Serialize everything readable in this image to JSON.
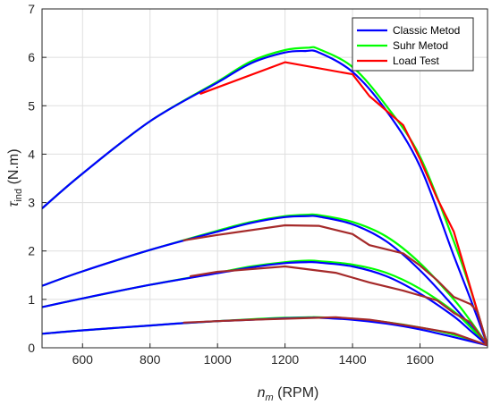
{
  "chart_data": {
    "type": "line",
    "title": "",
    "xlim": [
      480,
      1800
    ],
    "ylim": [
      0,
      7
    ],
    "xticks": [
      600,
      800,
      1000,
      1200,
      1400,
      1600
    ],
    "yticks": [
      0,
      1,
      2,
      3,
      4,
      5,
      6,
      7
    ],
    "xticklabels": [
      "600",
      "800",
      "1000",
      "1200",
      "1400",
      "1600"
    ],
    "yticklabels": [
      "0",
      "1",
      "2",
      "3",
      "4",
      "5",
      "6",
      "7"
    ],
    "xlabel": {
      "symbol": "n",
      "sub": "m",
      "unit": " (RPM)"
    },
    "ylabel": {
      "symbol": "τ",
      "sub": "ind",
      "unit": " (N.m)"
    },
    "grid": true,
    "legend_position": "top-right",
    "legend": [
      {
        "label": "Classic Metod",
        "color": "#0000ff"
      },
      {
        "label": "Suhr Metod",
        "color": "#00ff00"
      },
      {
        "label": "Load Test",
        "color": "#ff0000"
      }
    ],
    "series": [
      {
        "name": "Suhr Metod",
        "color": "#00ff00",
        "x": [
          480,
          600,
          800,
          1000,
          1100,
          1200,
          1270,
          1300,
          1400,
          1500,
          1600,
          1700,
          1750,
          1800
        ],
        "y": [
          2.88,
          3.6,
          4.68,
          5.5,
          5.92,
          6.15,
          6.2,
          6.17,
          5.8,
          5.0,
          3.95,
          2.2,
          1.2,
          0.05
        ]
      },
      {
        "name": "Classic Metod",
        "color": "#0000ff",
        "x": [
          480,
          600,
          800,
          1000,
          1100,
          1200,
          1260,
          1300,
          1400,
          1500,
          1600,
          1700,
          1750,
          1800
        ],
        "y": [
          2.88,
          3.6,
          4.68,
          5.48,
          5.88,
          6.1,
          6.13,
          6.1,
          5.7,
          4.9,
          3.75,
          1.9,
          1.0,
          0.05
        ]
      },
      {
        "name": "Load Test",
        "color": "#ff0000",
        "x": [
          950,
          1000,
          1200,
          1400,
          1450,
          1550,
          1600,
          1650,
          1700,
          1800
        ],
        "y": [
          5.25,
          5.38,
          5.9,
          5.65,
          5.2,
          4.6,
          3.9,
          3.1,
          2.4,
          0.05
        ]
      },
      {
        "color": "#00ff00",
        "x": [
          480,
          600,
          800,
          1000,
          1100,
          1200,
          1270,
          1300,
          1400,
          1500,
          1600,
          1700,
          1750,
          1800
        ],
        "y": [
          1.28,
          1.58,
          2.02,
          2.42,
          2.6,
          2.72,
          2.75,
          2.74,
          2.6,
          2.3,
          1.75,
          1.0,
          0.55,
          0.05
        ]
      },
      {
        "color": "#0000ff",
        "x": [
          480,
          600,
          800,
          1000,
          1100,
          1200,
          1270,
          1300,
          1400,
          1500,
          1600,
          1700,
          1750,
          1800
        ],
        "y": [
          1.28,
          1.58,
          2.02,
          2.4,
          2.58,
          2.7,
          2.72,
          2.71,
          2.55,
          2.2,
          1.6,
          0.85,
          0.45,
          0.05
        ]
      },
      {
        "color": "#a52a2a",
        "x": [
          900,
          1000,
          1200,
          1300,
          1400,
          1450,
          1550,
          1600,
          1650,
          1700,
          1750,
          1770,
          1800
        ],
        "y": [
          2.22,
          2.33,
          2.53,
          2.52,
          2.35,
          2.12,
          1.95,
          1.7,
          1.4,
          1.05,
          0.9,
          0.75,
          0.05
        ]
      },
      {
        "color": "#00ff00",
        "x": [
          480,
          600,
          800,
          1000,
          1100,
          1200,
          1270,
          1300,
          1400,
          1500,
          1600,
          1700,
          1750,
          1800
        ],
        "y": [
          0.84,
          1.02,
          1.3,
          1.55,
          1.68,
          1.77,
          1.8,
          1.79,
          1.72,
          1.55,
          1.22,
          0.75,
          0.42,
          0.05
        ]
      },
      {
        "color": "#0000ff",
        "x": [
          480,
          600,
          800,
          1000,
          1100,
          1200,
          1270,
          1300,
          1400,
          1500,
          1600,
          1700,
          1750,
          1800
        ],
        "y": [
          0.84,
          1.02,
          1.3,
          1.54,
          1.66,
          1.75,
          1.77,
          1.76,
          1.68,
          1.48,
          1.12,
          0.65,
          0.35,
          0.05
        ]
      },
      {
        "color": "#a52a2a",
        "x": [
          920,
          1000,
          1200,
          1350,
          1400,
          1450,
          1550,
          1600,
          1650,
          1700,
          1750,
          1800
        ],
        "y": [
          1.48,
          1.57,
          1.68,
          1.55,
          1.45,
          1.35,
          1.18,
          1.08,
          0.98,
          0.72,
          0.52,
          0.05
        ]
      },
      {
        "color": "#00ff00",
        "x": [
          480,
          600,
          800,
          900,
          1000,
          1100,
          1200,
          1270,
          1300,
          1400,
          1500,
          1600,
          1700,
          1800
        ],
        "y": [
          0.29,
          0.36,
          0.46,
          0.51,
          0.55,
          0.59,
          0.62,
          0.63,
          0.63,
          0.6,
          0.53,
          0.42,
          0.27,
          0.05
        ]
      },
      {
        "color": "#0000ff",
        "x": [
          480,
          600,
          800,
          900,
          1000,
          1100,
          1200,
          1270,
          1300,
          1400,
          1500,
          1600,
          1700,
          1800
        ],
        "y": [
          0.29,
          0.36,
          0.46,
          0.51,
          0.55,
          0.58,
          0.61,
          0.62,
          0.62,
          0.58,
          0.5,
          0.38,
          0.22,
          0.05
        ]
      },
      {
        "color": "#a52a2a",
        "x": [
          900,
          1000,
          1100,
          1200,
          1300,
          1350,
          1450,
          1500,
          1600,
          1700,
          1800
        ],
        "y": [
          0.52,
          0.55,
          0.58,
          0.6,
          0.62,
          0.63,
          0.58,
          0.53,
          0.42,
          0.3,
          0.05
        ]
      }
    ]
  }
}
